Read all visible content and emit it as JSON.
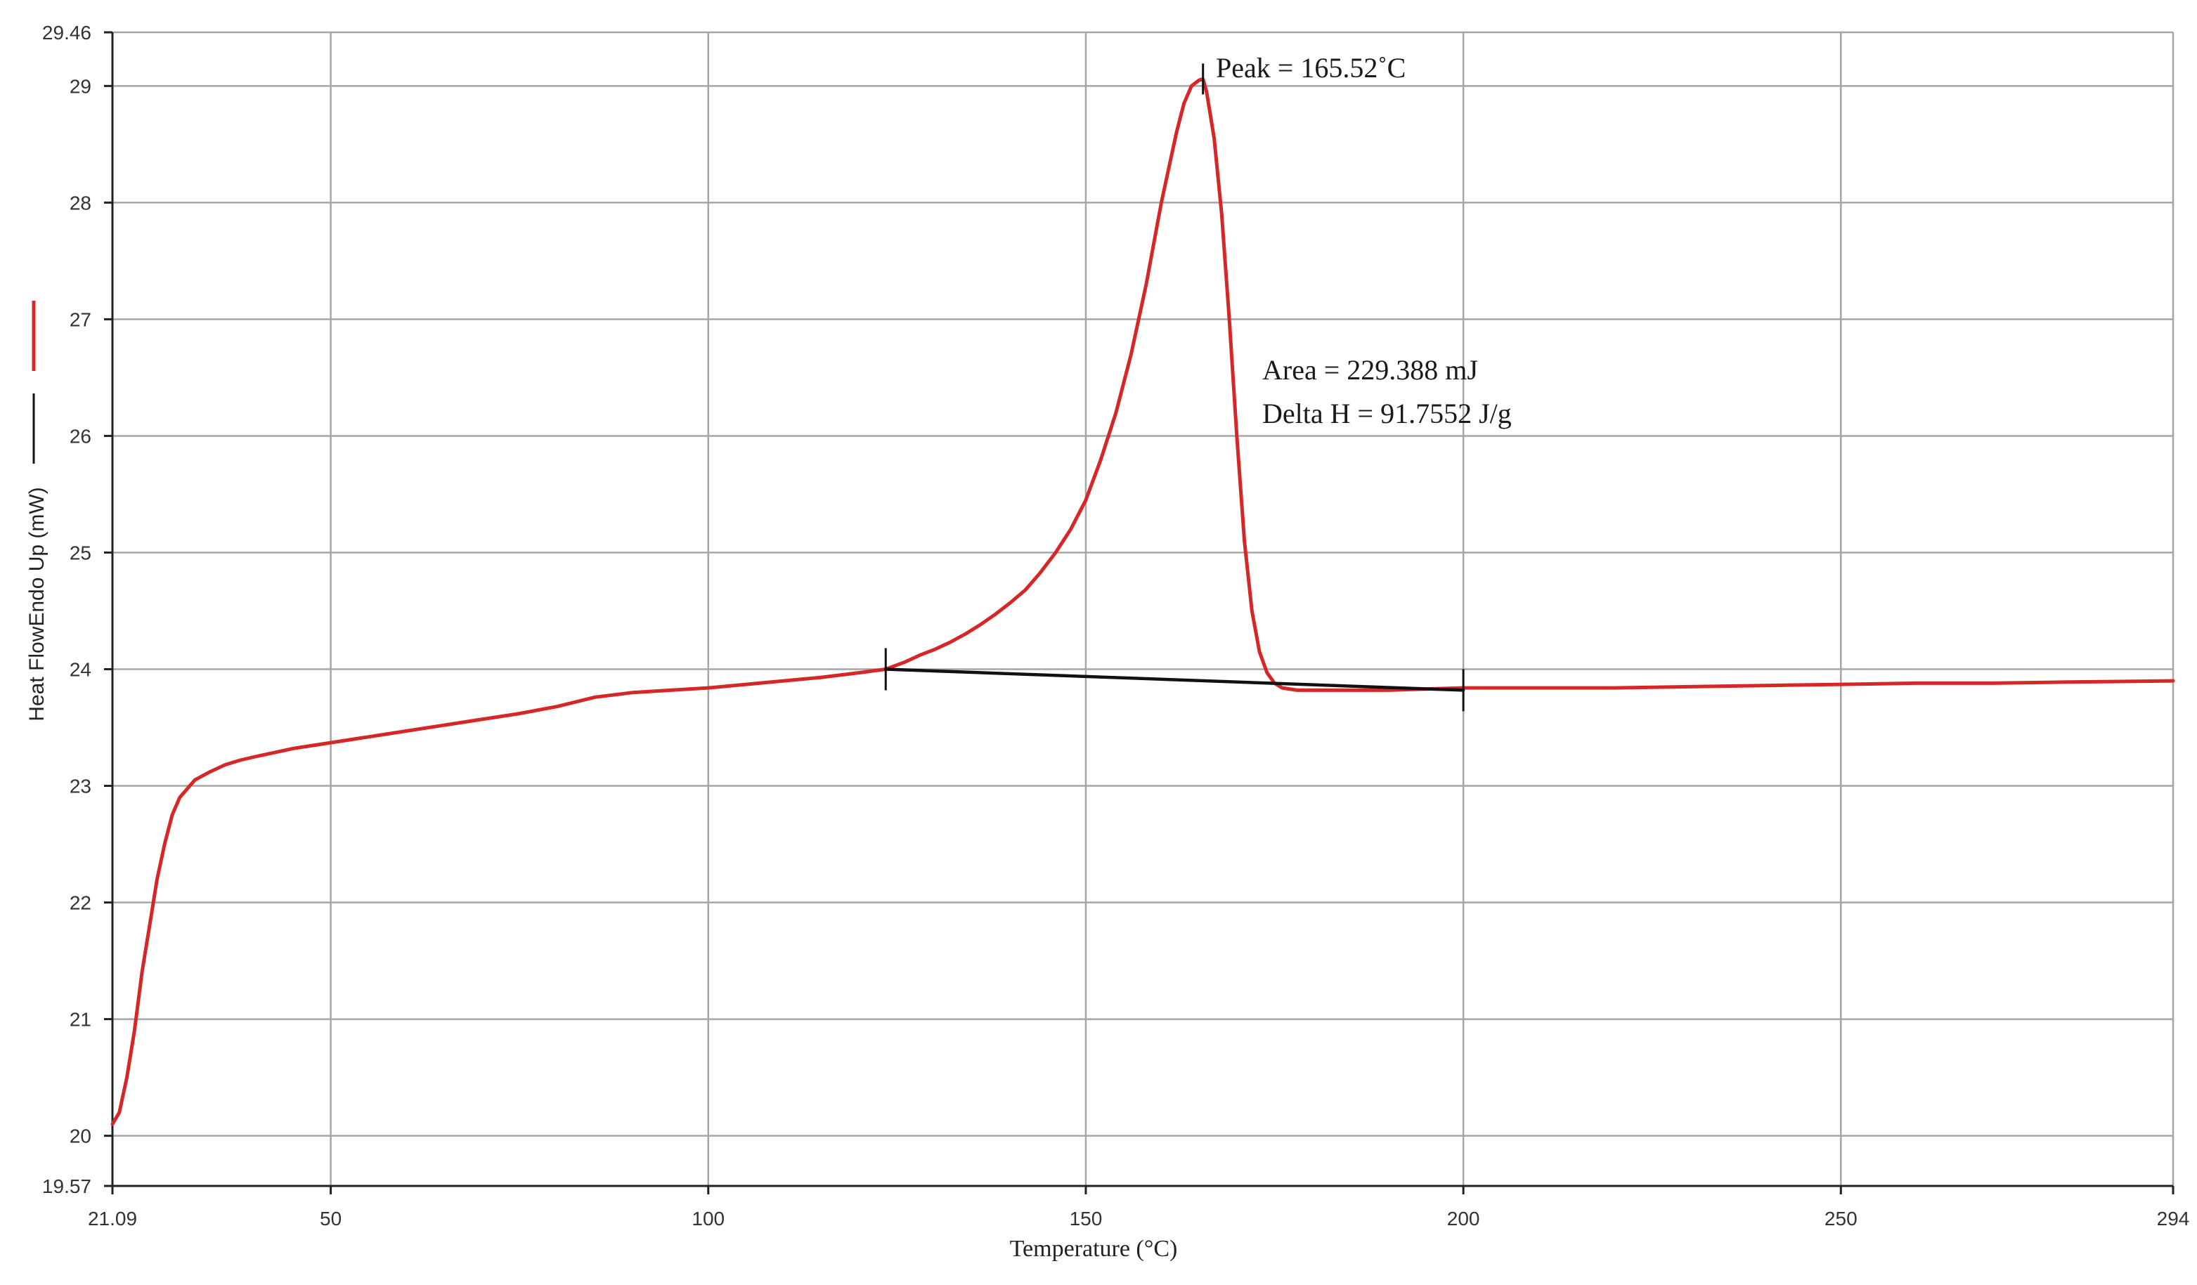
{
  "chart_data": {
    "type": "line",
    "xlabel": "Temperature (°C)",
    "ylabel": "Heat FlowEndo Up (mW)",
    "xlim": [
      21.09,
      294
    ],
    "ylim": [
      19.57,
      29.46
    ],
    "x_ticks": [
      21.09,
      50,
      100,
      150,
      200,
      250,
      294
    ],
    "x_tick_labels": [
      "21.09",
      "50",
      "100",
      "150",
      "200",
      "250",
      "294"
    ],
    "y_ticks": [
      19.57,
      20,
      21,
      22,
      23,
      24,
      25,
      26,
      27,
      28,
      29,
      29.46
    ],
    "y_tick_labels": [
      "19.57",
      "20",
      "21",
      "22",
      "23",
      "24",
      "25",
      "26",
      "27",
      "28",
      "29",
      "29.46"
    ],
    "grid": true,
    "colors": {
      "curve": "#d62728",
      "baseline": "#111111",
      "grid": "#a6a6a6"
    },
    "legend": [
      {
        "color": "#d62728",
        "label": ""
      },
      {
        "color": "#111111",
        "label": ""
      }
    ],
    "series": [
      {
        "name": "Heat Flow",
        "color": "#d62728",
        "x": [
          21.09,
          22,
          23,
          24,
          25,
          26,
          27,
          28,
          29,
          30,
          32,
          34,
          36,
          38,
          40,
          45,
          50,
          55,
          60,
          65,
          70,
          75,
          80,
          85,
          90,
          95,
          100,
          105,
          110,
          115,
          120,
          123.5,
          126,
          128,
          130,
          132,
          134,
          136,
          138,
          140,
          142,
          144,
          146,
          148,
          150,
          152,
          154,
          156,
          158,
          160,
          162,
          163,
          164,
          165,
          165.52,
          166,
          167,
          168,
          169,
          170,
          171,
          172,
          173,
          174,
          175,
          176,
          178,
          180,
          185,
          190,
          195,
          200,
          210,
          220,
          230,
          240,
          250,
          260,
          270,
          280,
          294
        ],
        "y": [
          20.1,
          20.2,
          20.5,
          20.9,
          21.4,
          21.8,
          22.2,
          22.5,
          22.75,
          22.9,
          23.05,
          23.12,
          23.18,
          23.22,
          23.25,
          23.32,
          23.37,
          23.42,
          23.47,
          23.52,
          23.57,
          23.62,
          23.68,
          23.76,
          23.8,
          23.82,
          23.84,
          23.87,
          23.9,
          23.93,
          23.97,
          24.0,
          24.06,
          24.12,
          24.17,
          24.23,
          24.3,
          24.38,
          24.47,
          24.57,
          24.68,
          24.83,
          25.0,
          25.2,
          25.45,
          25.8,
          26.2,
          26.7,
          27.3,
          28.0,
          28.6,
          28.85,
          29.0,
          29.05,
          29.06,
          28.95,
          28.55,
          27.9,
          27.0,
          26.0,
          25.1,
          24.5,
          24.15,
          23.97,
          23.88,
          23.84,
          23.82,
          23.82,
          23.82,
          23.82,
          23.83,
          23.84,
          23.84,
          23.84,
          23.85,
          23.86,
          23.87,
          23.88,
          23.88,
          23.89,
          23.9
        ]
      },
      {
        "name": "Baseline",
        "color": "#111111",
        "x": [
          123.5,
          200
        ],
        "y": [
          24.0,
          23.82
        ]
      }
    ],
    "markers": [
      {
        "x": 123.5,
        "y": 24.0
      },
      {
        "x": 200,
        "y": 23.82
      },
      {
        "x": 165.52,
        "y": 29.06
      }
    ],
    "annotations": {
      "peak": "Peak = 165.52˚C",
      "area": "Area = 229.388 mJ",
      "delta_h": "Delta H = 91.7552 J/g"
    }
  }
}
